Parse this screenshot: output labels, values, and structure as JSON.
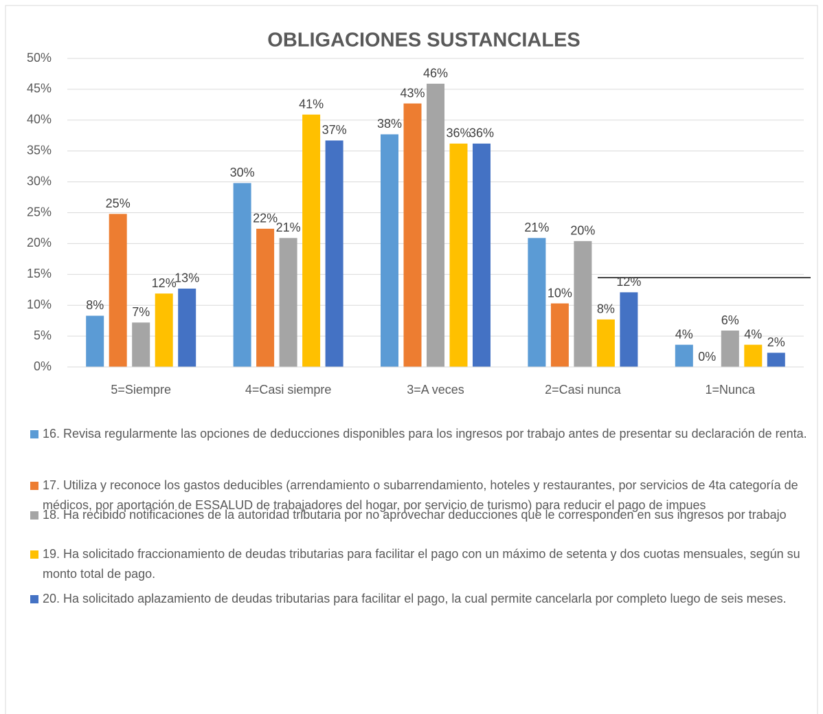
{
  "chart_data": {
    "type": "bar",
    "title": "OBLIGACIONES SUSTANCIALES",
    "categories": [
      "5=Siempre",
      "4=Casi siempre",
      "3=A veces",
      "2=Casi nunca",
      "1=Nunca"
    ],
    "series": [
      {
        "name": "16. Revisa regularmente las opciones de deducciones disponibles para los ingresos por trabajo antes de presentar su declaración de renta.",
        "color": "#5b9bd5",
        "values": [
          8.3,
          29.8,
          37.7,
          20.9,
          3.6
        ],
        "value_labels": [
          "8%",
          "30%",
          "38%",
          "21%",
          "4%"
        ]
      },
      {
        "name": "17. Utiliza y reconoce los gastos deducibles (arrendamiento o subarrendamiento, hoteles y restaurantes, por servicios de 4ta categoría de médicos, por aportación de ESSALUD de trabajadores del hogar, por servicio de turismo) para reducir el pago de impues",
        "color": "#ed7d31",
        "values": [
          24.8,
          22.4,
          42.7,
          10.3,
          0
        ],
        "value_labels": [
          "25%",
          "22%",
          "43%",
          "10%",
          "0%"
        ]
      },
      {
        "name": "18. Ha recibido notificaciones de la autoridad tributaria por no aprovechar deducciones que le corresponden en sus ingresos por trabajo",
        "color": "#a5a5a5",
        "values": [
          7.2,
          20.9,
          45.9,
          20.4,
          5.9
        ],
        "value_labels": [
          "7%",
          "21%",
          "46%",
          "20%",
          "6%"
        ]
      },
      {
        "name": "19. Ha solicitado fraccionamiento de deudas tributarias para facilitar el pago con un máximo de setenta y dos cuotas mensuales, según su monto total de pago.",
        "color": "#ffc000",
        "values": [
          11.9,
          40.9,
          36.2,
          7.7,
          3.6
        ],
        "value_labels": [
          "12%",
          "41%",
          "36%",
          "8%",
          "4%"
        ]
      },
      {
        "name": "20. Ha solicitado aplazamiento de deudas tributarias para facilitar el pago, la cual permite cancelarla por completo luego de seis meses.",
        "color": "#4472c4",
        "values": [
          12.7,
          36.7,
          36.2,
          12.1,
          2.3
        ],
        "value_labels": [
          "13%",
          "37%",
          "36%",
          "12%",
          "2%"
        ]
      }
    ],
    "ylim": [
      0,
      50
    ],
    "yticks": [
      {
        "value": 0,
        "label": "0%"
      },
      {
        "value": 5,
        "label": "5%"
      },
      {
        "value": 10,
        "label": "10%"
      },
      {
        "value": 15,
        "label": "15%"
      },
      {
        "value": 20,
        "label": "20%"
      },
      {
        "value": 25,
        "label": "25%"
      },
      {
        "value": 30,
        "label": "30%"
      },
      {
        "value": 35,
        "label": "35%"
      },
      {
        "value": 40,
        "label": "40%"
      },
      {
        "value": 45,
        "label": "45%"
      },
      {
        "value": 50,
        "label": "50%"
      }
    ],
    "grid": true,
    "legend": "bottom"
  }
}
